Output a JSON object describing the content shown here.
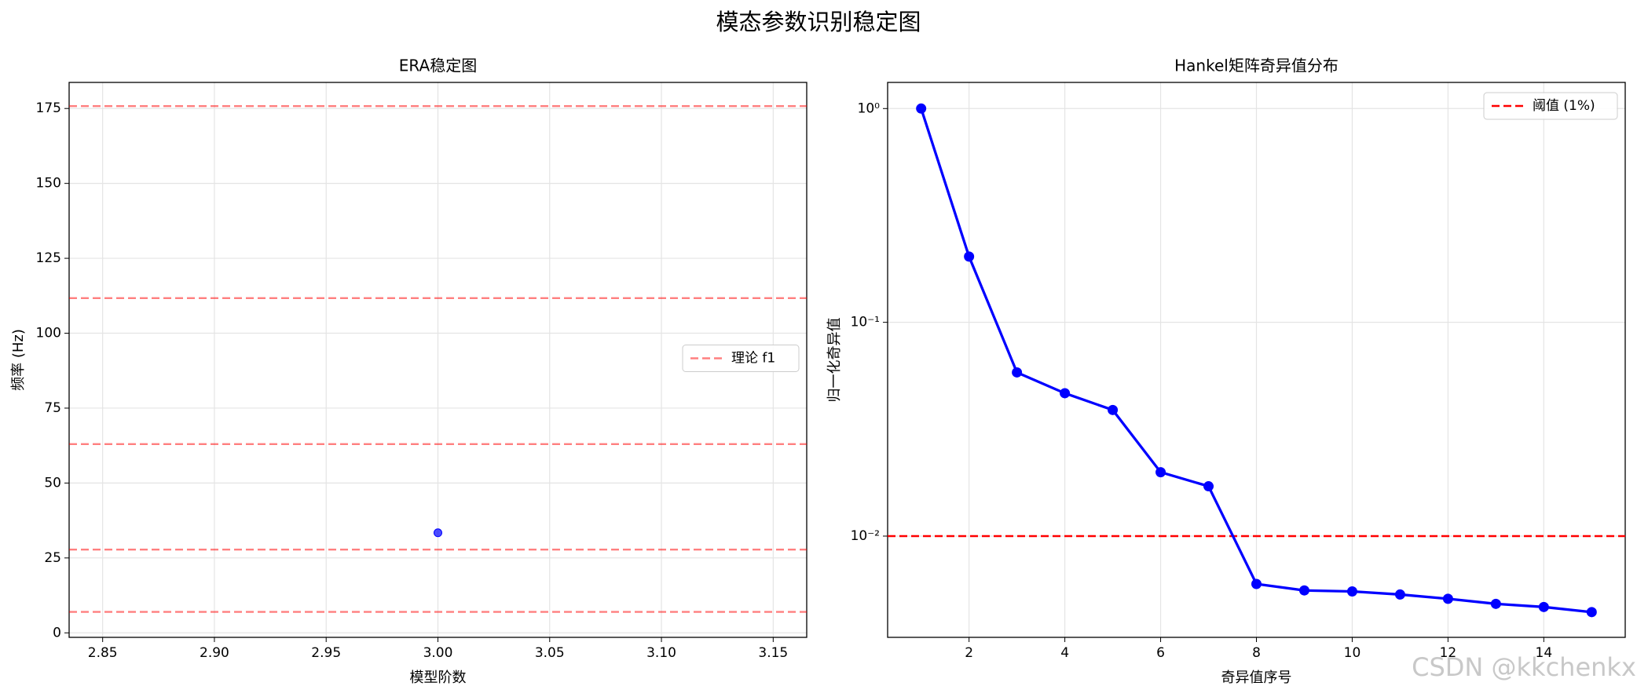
{
  "title": "模态参数识别稳定图",
  "watermark": "CSDN @kkchenkx",
  "chart_data": [
    {
      "type": "scatter",
      "title": "ERA稳定图",
      "x_label": "模型阶数",
      "y_label": "频率 (Hz)",
      "series": [
        {
          "color": "#0000ff",
          "x": [
            3.0
          ],
          "values": [
            33.4
          ]
        }
      ],
      "hlines": {
        "name": "理论 f1",
        "color": "#ff0000",
        "values": [
          175.8,
          111.7,
          63.0,
          27.8,
          7.0
        ]
      },
      "xlim": [
        2.835,
        3.165
      ],
      "xticks": [
        2.85,
        {
          "value": 2.9,
          "label": "2.90"
        },
        2.95,
        {
          "value": 3.0,
          "label": "3.00"
        },
        3.05,
        {
          "value": 3.1,
          "label": "3.10"
        },
        3.15
      ],
      "ylim": [
        -1.5,
        183.7
      ],
      "yticks": [
        0,
        25,
        50,
        75,
        100,
        125,
        150,
        175
      ],
      "grid": true,
      "legend": "center right"
    },
    {
      "type": "line",
      "title": "Hankel矩阵奇异值分布",
      "x_label": "奇异值序号",
      "y_label": "归一化奇异值",
      "x": [
        1,
        2,
        3,
        4,
        5,
        6,
        7,
        8,
        9,
        10,
        11,
        12,
        13,
        14,
        15
      ],
      "series": [
        {
          "color": "#0000ff",
          "values": [
            1.0,
            0.203,
            0.0583,
            0.0466,
            0.0389,
            0.0199,
            0.0171,
            0.00597,
            0.00557,
            0.00551,
            0.00533,
            0.00509,
            0.00482,
            0.00466,
            0.00441
          ]
        }
      ],
      "hlines": {
        "name": "阈值 (1%)",
        "color": "#ff0000",
        "values": [
          0.01
        ]
      },
      "xlim": [
        0.3,
        15.7
      ],
      "xticks": [
        2,
        4,
        6,
        8,
        10,
        12,
        14
      ],
      "ylim": [
        0.00336,
        1.325
      ],
      "yticks": [
        {
          "value": 1,
          "label": "10⁰"
        },
        {
          "value": 0.1,
          "label": "10⁻¹"
        },
        {
          "value": 0.01,
          "label": "10⁻²"
        }
      ],
      "log_y": true,
      "grid": true,
      "legend": "upper right"
    }
  ]
}
